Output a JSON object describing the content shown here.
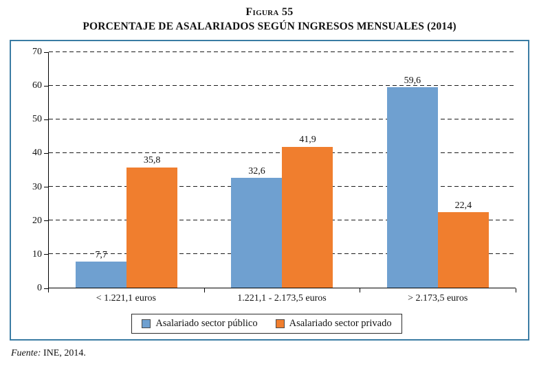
{
  "header": {
    "figure_label": "Figura 55",
    "title": "PORCENTAJE DE ASALARIADOS SEGÚN INGRESOS MENSUALES (2014)"
  },
  "chart_data": {
    "type": "bar",
    "title": "PORCENTAJE DE ASALARIADOS SEGÚN INGRESOS MENSUALES (2014)",
    "categories": [
      "< 1.221,1 euros",
      "1.221,1 - 2.173,5 euros",
      "> 2.173,5 euros"
    ],
    "series": [
      {
        "name": "Asalariado sector público",
        "color": "#6FA0D0",
        "values": [
          7.7,
          32.6,
          59.6
        ]
      },
      {
        "name": "Asalariado sector privado",
        "color": "#F07E2E",
        "values": [
          35.8,
          41.9,
          22.4
        ]
      }
    ],
    "xlabel": "",
    "ylabel": "",
    "ylim": [
      0,
      70
    ],
    "yticks": [
      0,
      10,
      20,
      30,
      40,
      50,
      60,
      70
    ],
    "grid": "dashed-horizontal",
    "legend_position": "bottom",
    "decimal_separator": ","
  },
  "footer": {
    "source_label": "Fuente:",
    "source_text": "INE, 2014."
  },
  "colors": {
    "frame_border": "#3A7CA3",
    "public_blue": "#6FA0D0",
    "private_orange": "#F07E2E"
  }
}
